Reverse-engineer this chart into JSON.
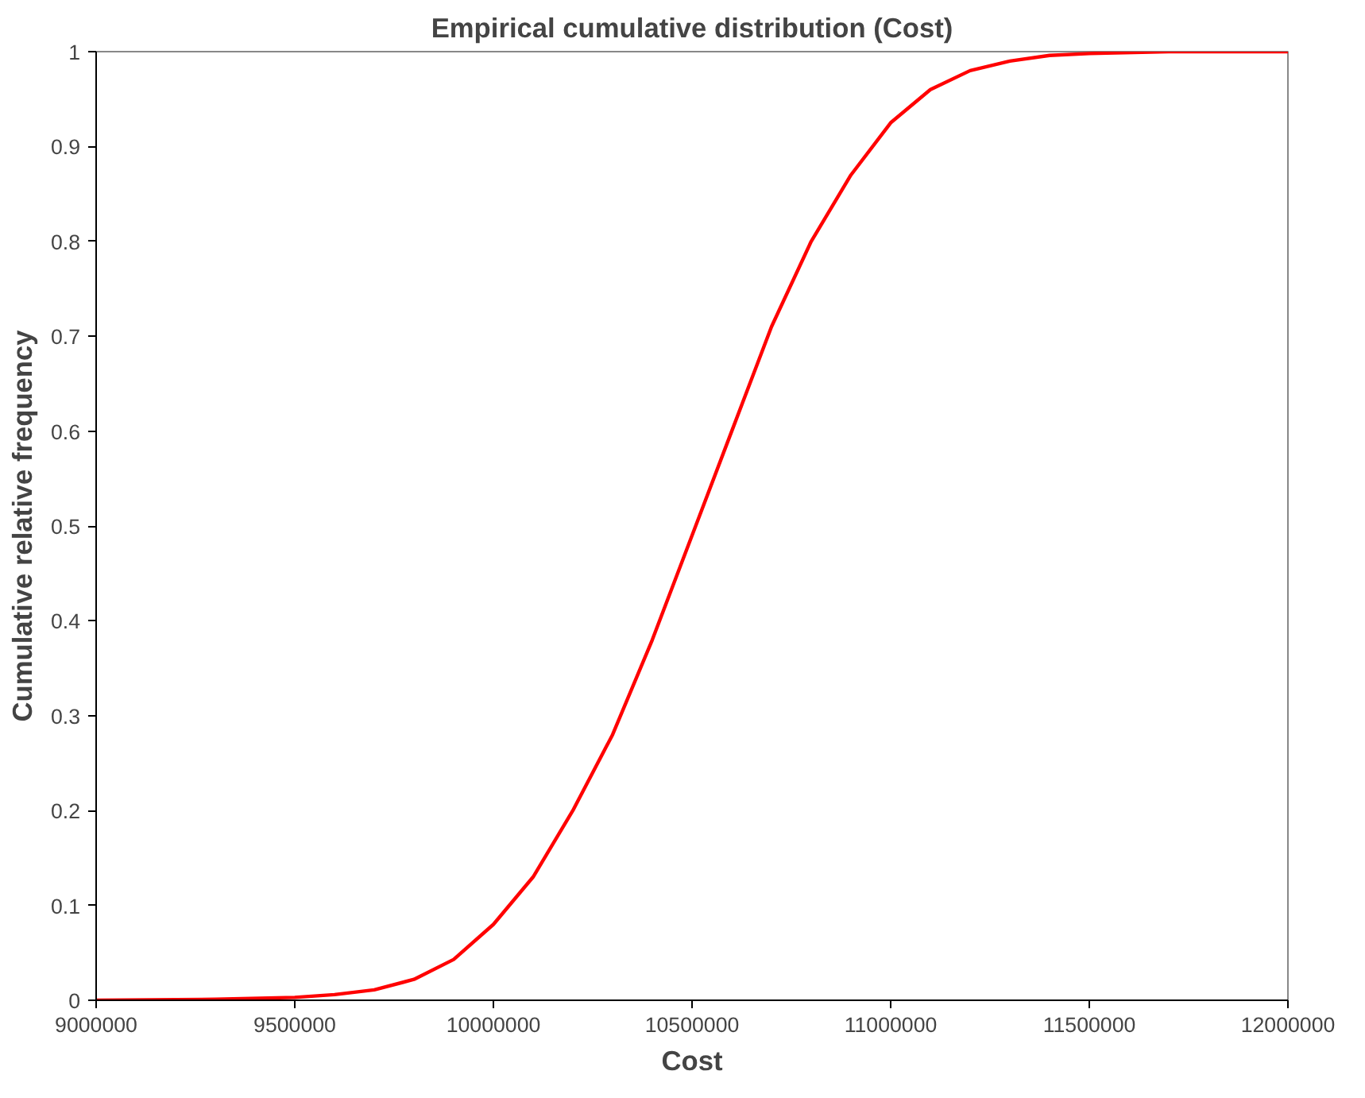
{
  "chart_data": {
    "type": "line",
    "title": "Empirical cumulative distribution (Cost)",
    "xlabel": "Cost",
    "ylabel": "Cumulative relative frequency",
    "x": [
      9000000,
      9300000,
      9500000,
      9600000,
      9700000,
      9800000,
      9900000,
      10000000,
      10100000,
      10200000,
      10300000,
      10400000,
      10500000,
      10600000,
      10700000,
      10800000,
      10900000,
      11000000,
      11100000,
      11200000,
      11300000,
      11400000,
      11500000,
      11700000,
      12000000
    ],
    "series": [
      {
        "color": "#ff0000",
        "values": [
          0,
          0.001,
          0.003,
          0.006,
          0.011,
          0.022,
          0.043,
          0.08,
          0.13,
          0.2,
          0.28,
          0.38,
          0.49,
          0.6,
          0.71,
          0.8,
          0.87,
          0.925,
          0.96,
          0.98,
          0.99,
          0.996,
          0.998,
          1,
          1
        ]
      }
    ],
    "xlim": [
      9000000,
      12000000
    ],
    "ylim": [
      0,
      1
    ],
    "xticks": [
      9000000,
      9500000,
      10000000,
      10500000,
      11000000,
      11500000,
      12000000
    ],
    "yticks": [
      0,
      0.1,
      0.2,
      0.3,
      0.4,
      0.5,
      0.6,
      0.7,
      0.8,
      0.9,
      1
    ],
    "grid": false,
    "marker": "none",
    "line_style": "solid"
  }
}
